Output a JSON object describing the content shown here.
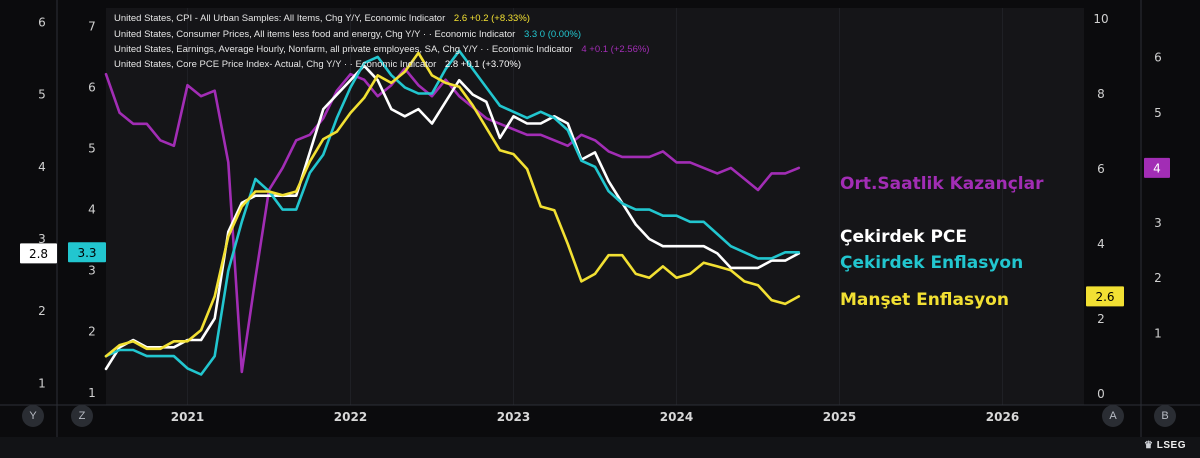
{
  "legend": [
    {
      "text": "United States, CPI - All Urban Samples: All Items, Chg Y/Y, Economic Indicator",
      "value": "2.6",
      "change": "+0.2 (+8.33%)",
      "color": "#f2e033"
    },
    {
      "text": "United States, Consumer Prices, All items less food and energy, Chg Y/Y ·  · Economic Indicator",
      "value": "3.3",
      "change": "0 (0.00%)",
      "color": "#22c6cf"
    },
    {
      "text": "United States, Earnings, Average Hourly, Nonfarm, all private employees, SA, Chg Y/Y ·  · Economic Indicator",
      "value": "4",
      "change": "+0.1 (+2.56%)",
      "color": "#a22db5"
    },
    {
      "text": "United States, Core PCE Price Index- Actual, Chg Y/Y ·  · Economic Indicator",
      "value": "2.8",
      "change": "+0.1 (+3.70%)",
      "color": "#ffffff"
    }
  ],
  "axis_names": {
    "y": "Y",
    "z": "Z",
    "a": "A",
    "b": "B"
  },
  "footer": {
    "brand": "LSEG"
  },
  "chart_data": {
    "type": "line",
    "x_ticks": [
      "2021",
      "2022",
      "2023",
      "2024",
      "2025",
      "2026"
    ],
    "x_range": [
      "2020-07",
      "2026-07"
    ],
    "axes": {
      "Y": {
        "side": "left",
        "range": [
          0.7,
          6.2
        ],
        "ticks": [
          1,
          2,
          3,
          4,
          5,
          6
        ]
      },
      "Z": {
        "side": "left",
        "range": [
          0.8,
          7.3
        ],
        "ticks": [
          1,
          2,
          3,
          4,
          5,
          6,
          7
        ]
      },
      "A": {
        "side": "right",
        "range": [
          -0.3,
          10.3
        ],
        "ticks": [
          0,
          2,
          4,
          6,
          8,
          10
        ]
      },
      "B": {
        "side": "right",
        "range": [
          -0.3,
          6.9
        ],
        "ticks": [
          1,
          2,
          3,
          4,
          5,
          6
        ]
      }
    },
    "last_value_tags": [
      {
        "axis": "Y",
        "value": "2.8",
        "color": "#ffffff",
        "text_color": "#000000"
      },
      {
        "axis": "Z",
        "value": "3.3",
        "color": "#22c6cf",
        "text_color": "#000000"
      },
      {
        "axis": "A",
        "value": "2.6",
        "color": "#f2e033",
        "text_color": "#000000"
      },
      {
        "axis": "B",
        "value": "4",
        "color": "#a22db5",
        "text_color": "#ffffff"
      }
    ],
    "series": [
      {
        "name": "Ort.Saatlik Kazançlar",
        "axis": "B",
        "color": "#a22db5",
        "x": [
          "2020-07",
          "2020-08",
          "2020-09",
          "2020-10",
          "2020-11",
          "2020-12",
          "2021-01",
          "2021-02",
          "2021-03",
          "2021-04",
          "2021-05",
          "2021-06",
          "2021-07",
          "2021-08",
          "2021-09",
          "2021-10",
          "2021-11",
          "2021-12",
          "2022-01",
          "2022-02",
          "2022-03",
          "2022-04",
          "2022-05",
          "2022-06",
          "2022-07",
          "2022-08",
          "2022-09",
          "2022-10",
          "2022-11",
          "2022-12",
          "2023-01",
          "2023-02",
          "2023-03",
          "2023-04",
          "2023-05",
          "2023-06",
          "2023-07",
          "2023-08",
          "2023-09",
          "2023-10",
          "2023-11",
          "2023-12",
          "2024-01",
          "2024-02",
          "2024-03",
          "2024-04",
          "2024-05",
          "2024-06",
          "2024-07",
          "2024-08",
          "2024-09",
          "2024-10"
        ],
        "values": [
          5.7,
          5.0,
          4.8,
          4.8,
          4.5,
          4.4,
          5.5,
          5.3,
          5.4,
          4.1,
          0.3,
          2.0,
          3.6,
          4.0,
          4.5,
          4.6,
          4.9,
          5.4,
          5.7,
          5.6,
          5.3,
          5.5,
          5.8,
          5.5,
          5.3,
          5.6,
          5.3,
          5.1,
          4.9,
          4.8,
          4.7,
          4.6,
          4.6,
          4.5,
          4.4,
          4.6,
          4.5,
          4.3,
          4.2,
          4.2,
          4.2,
          4.3,
          4.1,
          4.1,
          4.0,
          3.9,
          4.0,
          3.8,
          3.6,
          3.9,
          3.9,
          4.0
        ]
      },
      {
        "name": "Çekirdek PCE",
        "axis": "Y",
        "color": "#ffffff",
        "x": [
          "2020-07",
          "2020-08",
          "2020-09",
          "2020-10",
          "2020-11",
          "2020-12",
          "2021-01",
          "2021-02",
          "2021-03",
          "2021-04",
          "2021-05",
          "2021-06",
          "2021-07",
          "2021-08",
          "2021-09",
          "2021-10",
          "2021-11",
          "2021-12",
          "2022-01",
          "2022-02",
          "2022-03",
          "2022-04",
          "2022-05",
          "2022-06",
          "2022-07",
          "2022-08",
          "2022-09",
          "2022-10",
          "2022-11",
          "2022-12",
          "2023-01",
          "2023-02",
          "2023-03",
          "2023-04",
          "2023-05",
          "2023-06",
          "2023-07",
          "2023-08",
          "2023-09",
          "2023-10",
          "2023-11",
          "2023-12",
          "2024-01",
          "2024-02",
          "2024-03",
          "2024-04",
          "2024-05",
          "2024-06",
          "2024-07",
          "2024-08",
          "2024-09",
          "2024-10"
        ],
        "values": [
          1.2,
          1.5,
          1.6,
          1.5,
          1.5,
          1.5,
          1.6,
          1.6,
          1.9,
          3.1,
          3.5,
          3.6,
          3.6,
          3.6,
          3.6,
          4.2,
          4.8,
          5.0,
          5.2,
          5.4,
          5.2,
          4.8,
          4.7,
          4.8,
          4.6,
          4.9,
          5.2,
          5.0,
          4.9,
          4.4,
          4.7,
          4.6,
          4.6,
          4.7,
          4.6,
          4.1,
          4.2,
          3.8,
          3.5,
          3.2,
          3.0,
          2.9,
          2.9,
          2.9,
          2.9,
          2.8,
          2.6,
          2.6,
          2.6,
          2.7,
          2.7,
          2.8
        ]
      },
      {
        "name": "Çekirdek Enflasyon",
        "axis": "Z",
        "color": "#22c6cf",
        "x": [
          "2020-07",
          "2020-08",
          "2020-09",
          "2020-10",
          "2020-11",
          "2020-12",
          "2021-01",
          "2021-02",
          "2021-03",
          "2021-04",
          "2021-05",
          "2021-06",
          "2021-07",
          "2021-08",
          "2021-09",
          "2021-10",
          "2021-11",
          "2021-12",
          "2022-01",
          "2022-02",
          "2022-03",
          "2022-04",
          "2022-05",
          "2022-06",
          "2022-07",
          "2022-08",
          "2022-09",
          "2022-10",
          "2022-11",
          "2022-12",
          "2023-01",
          "2023-02",
          "2023-03",
          "2023-04",
          "2023-05",
          "2023-06",
          "2023-07",
          "2023-08",
          "2023-09",
          "2023-10",
          "2023-11",
          "2023-12",
          "2024-01",
          "2024-02",
          "2024-03",
          "2024-04",
          "2024-05",
          "2024-06",
          "2024-07",
          "2024-08",
          "2024-09",
          "2024-10"
        ],
        "values": [
          1.6,
          1.7,
          1.7,
          1.6,
          1.6,
          1.6,
          1.4,
          1.3,
          1.6,
          3.0,
          3.8,
          4.5,
          4.3,
          4.0,
          4.0,
          4.6,
          4.9,
          5.5,
          6.0,
          6.4,
          6.5,
          6.2,
          6.0,
          5.9,
          5.9,
          6.3,
          6.6,
          6.3,
          6.0,
          5.7,
          5.6,
          5.5,
          5.6,
          5.5,
          5.3,
          4.8,
          4.7,
          4.3,
          4.1,
          4.0,
          4.0,
          3.9,
          3.9,
          3.8,
          3.8,
          3.6,
          3.4,
          3.3,
          3.2,
          3.2,
          3.3,
          3.3
        ]
      },
      {
        "name": "Manşet Enflasyon",
        "axis": "A",
        "color": "#f2e033",
        "x": [
          "2020-07",
          "2020-08",
          "2020-09",
          "2020-10",
          "2020-11",
          "2020-12",
          "2021-01",
          "2021-02",
          "2021-03",
          "2021-04",
          "2021-05",
          "2021-06",
          "2021-07",
          "2021-08",
          "2021-09",
          "2021-10",
          "2021-11",
          "2021-12",
          "2022-01",
          "2022-02",
          "2022-03",
          "2022-04",
          "2022-05",
          "2022-06",
          "2022-07",
          "2022-08",
          "2022-09",
          "2022-10",
          "2022-11",
          "2022-12",
          "2023-01",
          "2023-02",
          "2023-03",
          "2023-04",
          "2023-05",
          "2023-06",
          "2023-07",
          "2023-08",
          "2023-09",
          "2023-10",
          "2023-11",
          "2023-12",
          "2024-01",
          "2024-02",
          "2024-03",
          "2024-04",
          "2024-05",
          "2024-06",
          "2024-07",
          "2024-08",
          "2024-09",
          "2024-10"
        ],
        "values": [
          1.0,
          1.3,
          1.4,
          1.2,
          1.2,
          1.4,
          1.4,
          1.7,
          2.6,
          4.2,
          5.0,
          5.4,
          5.4,
          5.3,
          5.4,
          6.2,
          6.8,
          7.0,
          7.5,
          7.9,
          8.5,
          8.3,
          8.6,
          9.1,
          8.5,
          8.3,
          8.2,
          7.7,
          7.1,
          6.5,
          6.4,
          6.0,
          5.0,
          4.9,
          4.0,
          3.0,
          3.2,
          3.7,
          3.7,
          3.2,
          3.1,
          3.4,
          3.1,
          3.2,
          3.5,
          3.4,
          3.3,
          3.0,
          2.9,
          2.5,
          2.4,
          2.6
        ]
      }
    ]
  }
}
